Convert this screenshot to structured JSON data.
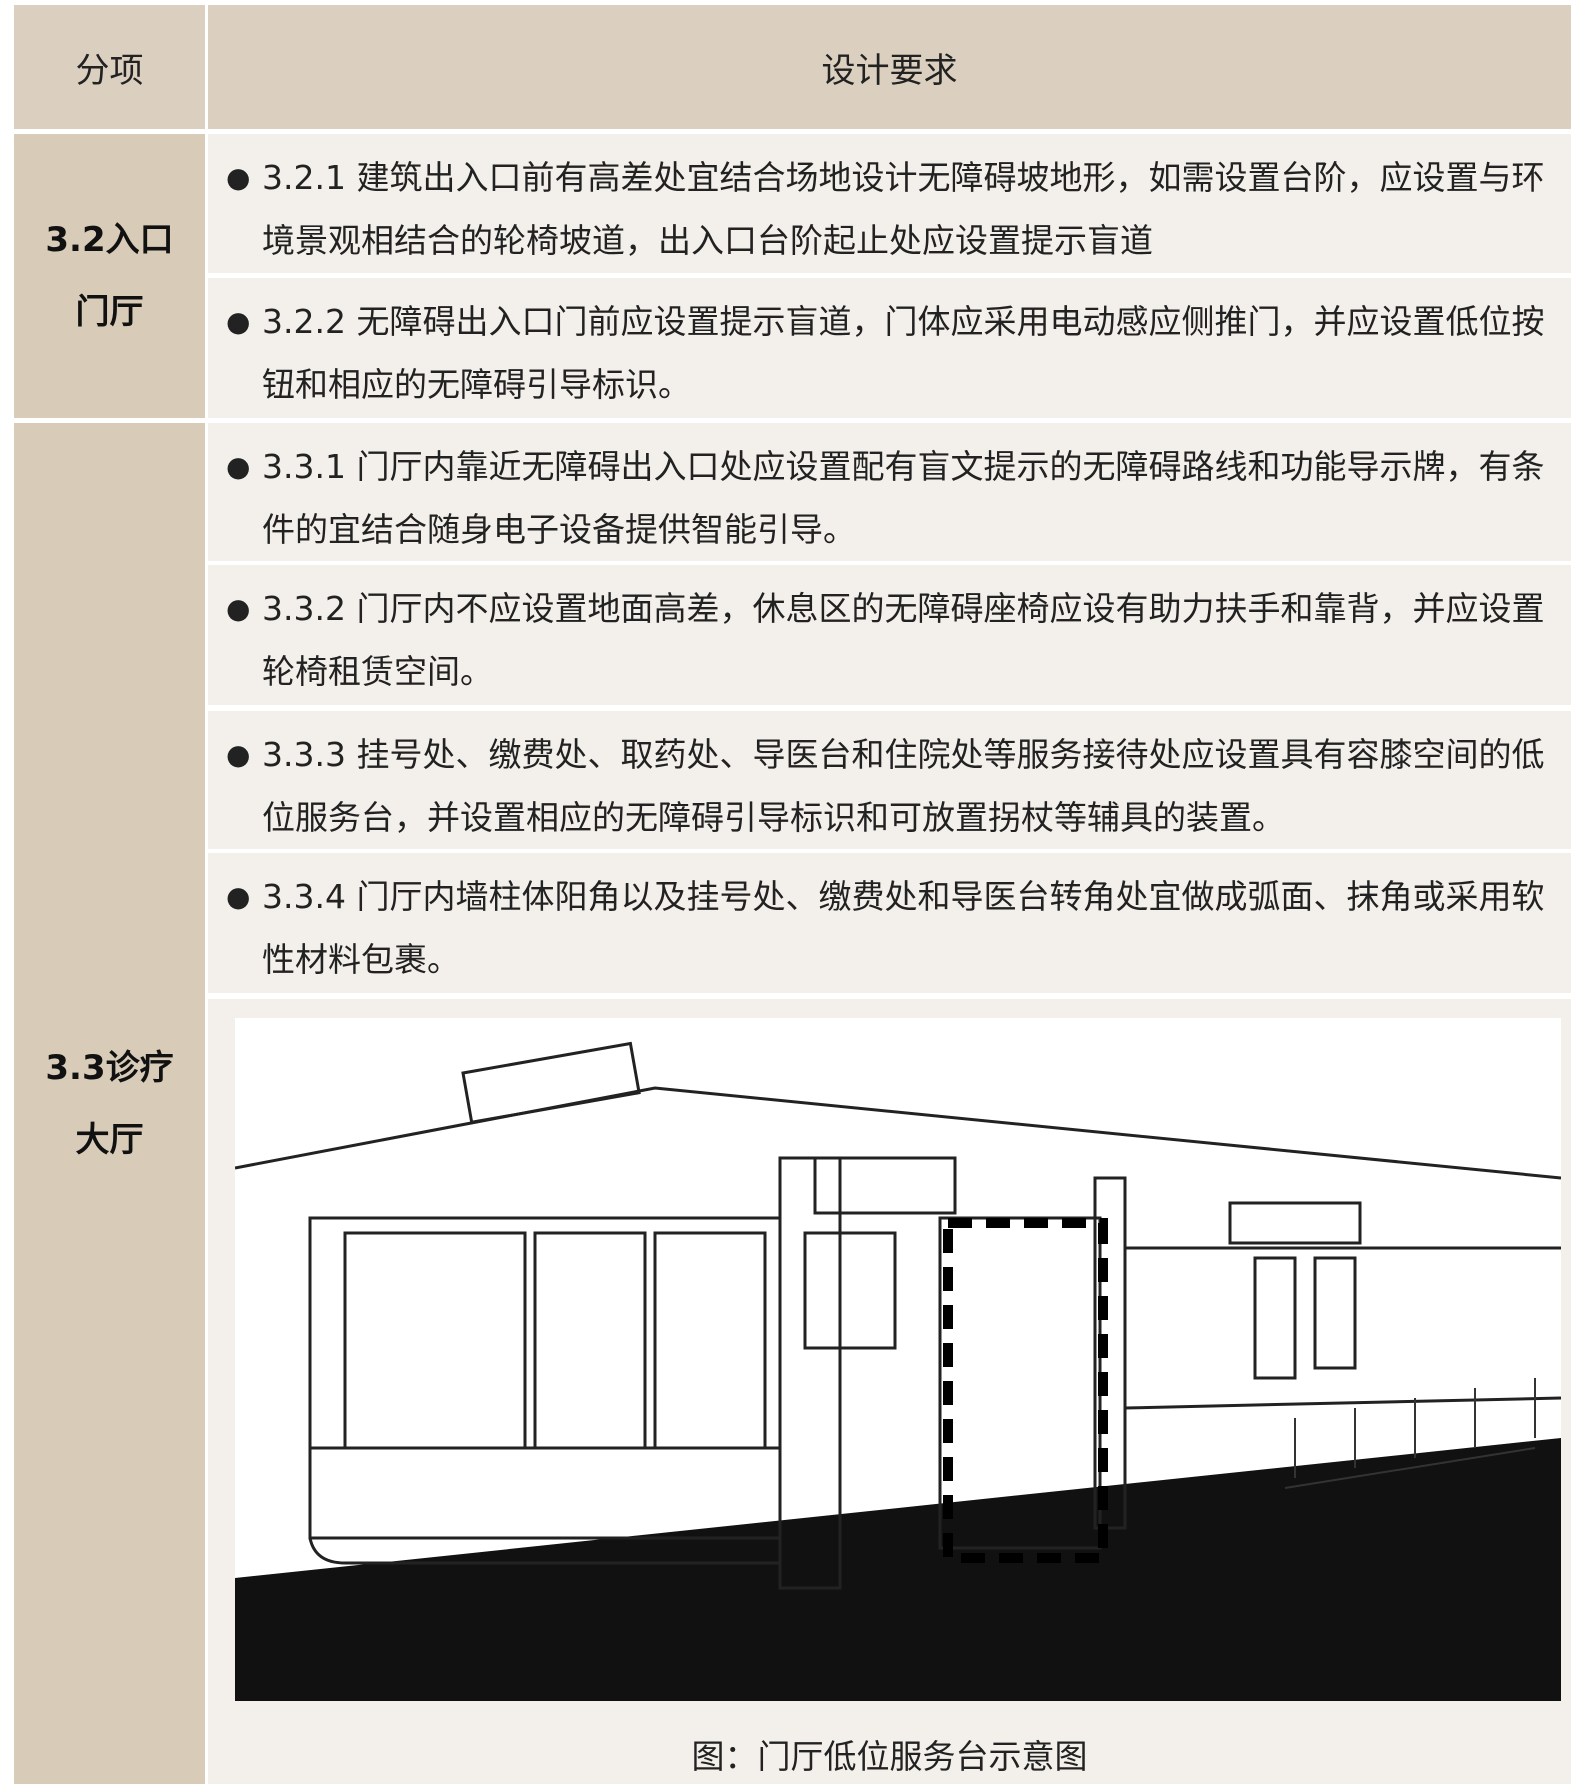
{
  "header": {
    "col1": "分项",
    "col2": "设计要求"
  },
  "sections": [
    {
      "label_lines": [
        "3.2入口",
        "门厅"
      ],
      "items": [
        "3.2.1 建筑出入口前有高差处宜结合场地设计无障碍坡地形，如需设置台阶，应设置与环境景观相结合的轮椅坡道，出入口台阶起止处应设置提示盲道",
        "3.2.2 无障碍出入口门前应设置提示盲道，门体应采用电动感应侧推门，并应设置低位按钮和相应的无障碍引导标识。"
      ]
    },
    {
      "label_lines": [
        "3.3诊疗",
        "大厅"
      ],
      "items": [
        "3.3.1 门厅内靠近无障碍出入口处应设置配有盲文提示的无障碍路线和功能导示牌，有条件的宜结合随身电子设备提供智能引导。",
        "3.3.2 门厅内不应设置地面高差，休息区的无障碍座椅应设有助力扶手和靠背，并应设置轮椅租赁空间。",
        "3.3.3 挂号处、缴费处、取药处、导医台和住院处等服务接待处应设置具有容膝空间的低位服务台，并设置相应的无障碍引导标识和可放置拐杖等辅具的装置。",
        "3.3.4 门厅内墙柱体阳角以及挂号处、缴费处和导医台转角处宜做成弧面、抹角或采用软性材料包裹。"
      ],
      "figure_caption": "图：门厅低位服务台示意图"
    }
  ]
}
